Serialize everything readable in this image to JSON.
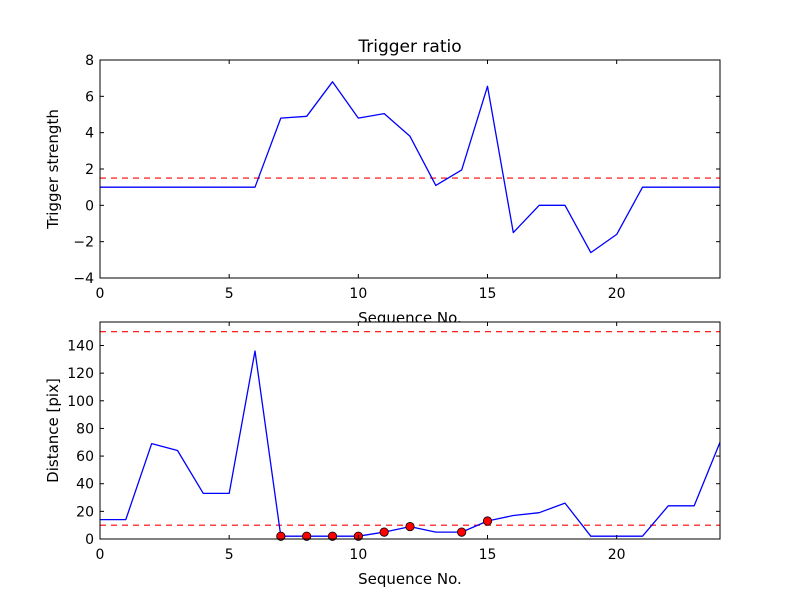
{
  "chart_data": [
    {
      "type": "line",
      "title": "Trigger ratio",
      "xlabel": "Sequence No.",
      "ylabel": "Trigger strength",
      "xlim": [
        0,
        24
      ],
      "ylim": [
        -4,
        8
      ],
      "xticks": [
        0,
        5,
        10,
        15,
        20
      ],
      "yticks": [
        -4,
        -2,
        0,
        2,
        4,
        6,
        8
      ],
      "grid": false,
      "series": [
        {
          "color": "#0000ff",
          "x": [
            0,
            1,
            2,
            3,
            4,
            5,
            6,
            7,
            8,
            9,
            10,
            11,
            12,
            13,
            14,
            15,
            16,
            17,
            18,
            19,
            20,
            21,
            22,
            23,
            24
          ],
          "y": [
            1,
            1,
            1,
            1,
            1,
            1,
            1,
            4.8,
            4.9,
            6.8,
            4.8,
            5.05,
            3.8,
            1.1,
            1.95,
            6.55,
            -1.5,
            0,
            0,
            -2.6,
            -1.6,
            1,
            1,
            1,
            1
          ]
        }
      ],
      "thresholds": [
        {
          "y": 1.5,
          "color": "#ff0000",
          "style": "dashed"
        }
      ]
    },
    {
      "type": "line",
      "title": "",
      "xlabel": "Sequence No.",
      "ylabel": "Distance [pix]",
      "xlim": [
        0,
        24
      ],
      "ylim": [
        0,
        157
      ],
      "xticks": [
        0,
        5,
        10,
        15,
        20
      ],
      "yticks": [
        0,
        20,
        40,
        60,
        80,
        100,
        120,
        140
      ],
      "grid": false,
      "series": [
        {
          "color": "#0000ff",
          "x": [
            0,
            1,
            2,
            3,
            4,
            5,
            6,
            7,
            8,
            9,
            10,
            11,
            12,
            13,
            14,
            15,
            16,
            17,
            18,
            19,
            20,
            21,
            22,
            23,
            24
          ],
          "y": [
            14,
            14,
            69,
            64,
            33,
            33,
            136,
            2,
            2,
            2,
            2,
            5,
            9,
            5,
            5,
            13,
            17,
            19,
            26,
            2,
            2,
            2,
            24,
            24,
            70
          ]
        }
      ],
      "markers": {
        "color": "#ff0000",
        "x": [
          7,
          8,
          9,
          10,
          11,
          12,
          14,
          15
        ],
        "y": [
          2,
          2,
          2,
          2,
          5,
          9,
          5,
          13
        ]
      },
      "thresholds": [
        {
          "y": 150,
          "color": "#ff0000",
          "style": "dashed"
        },
        {
          "y": 10,
          "color": "#ff0000",
          "style": "dashed"
        }
      ]
    }
  ]
}
